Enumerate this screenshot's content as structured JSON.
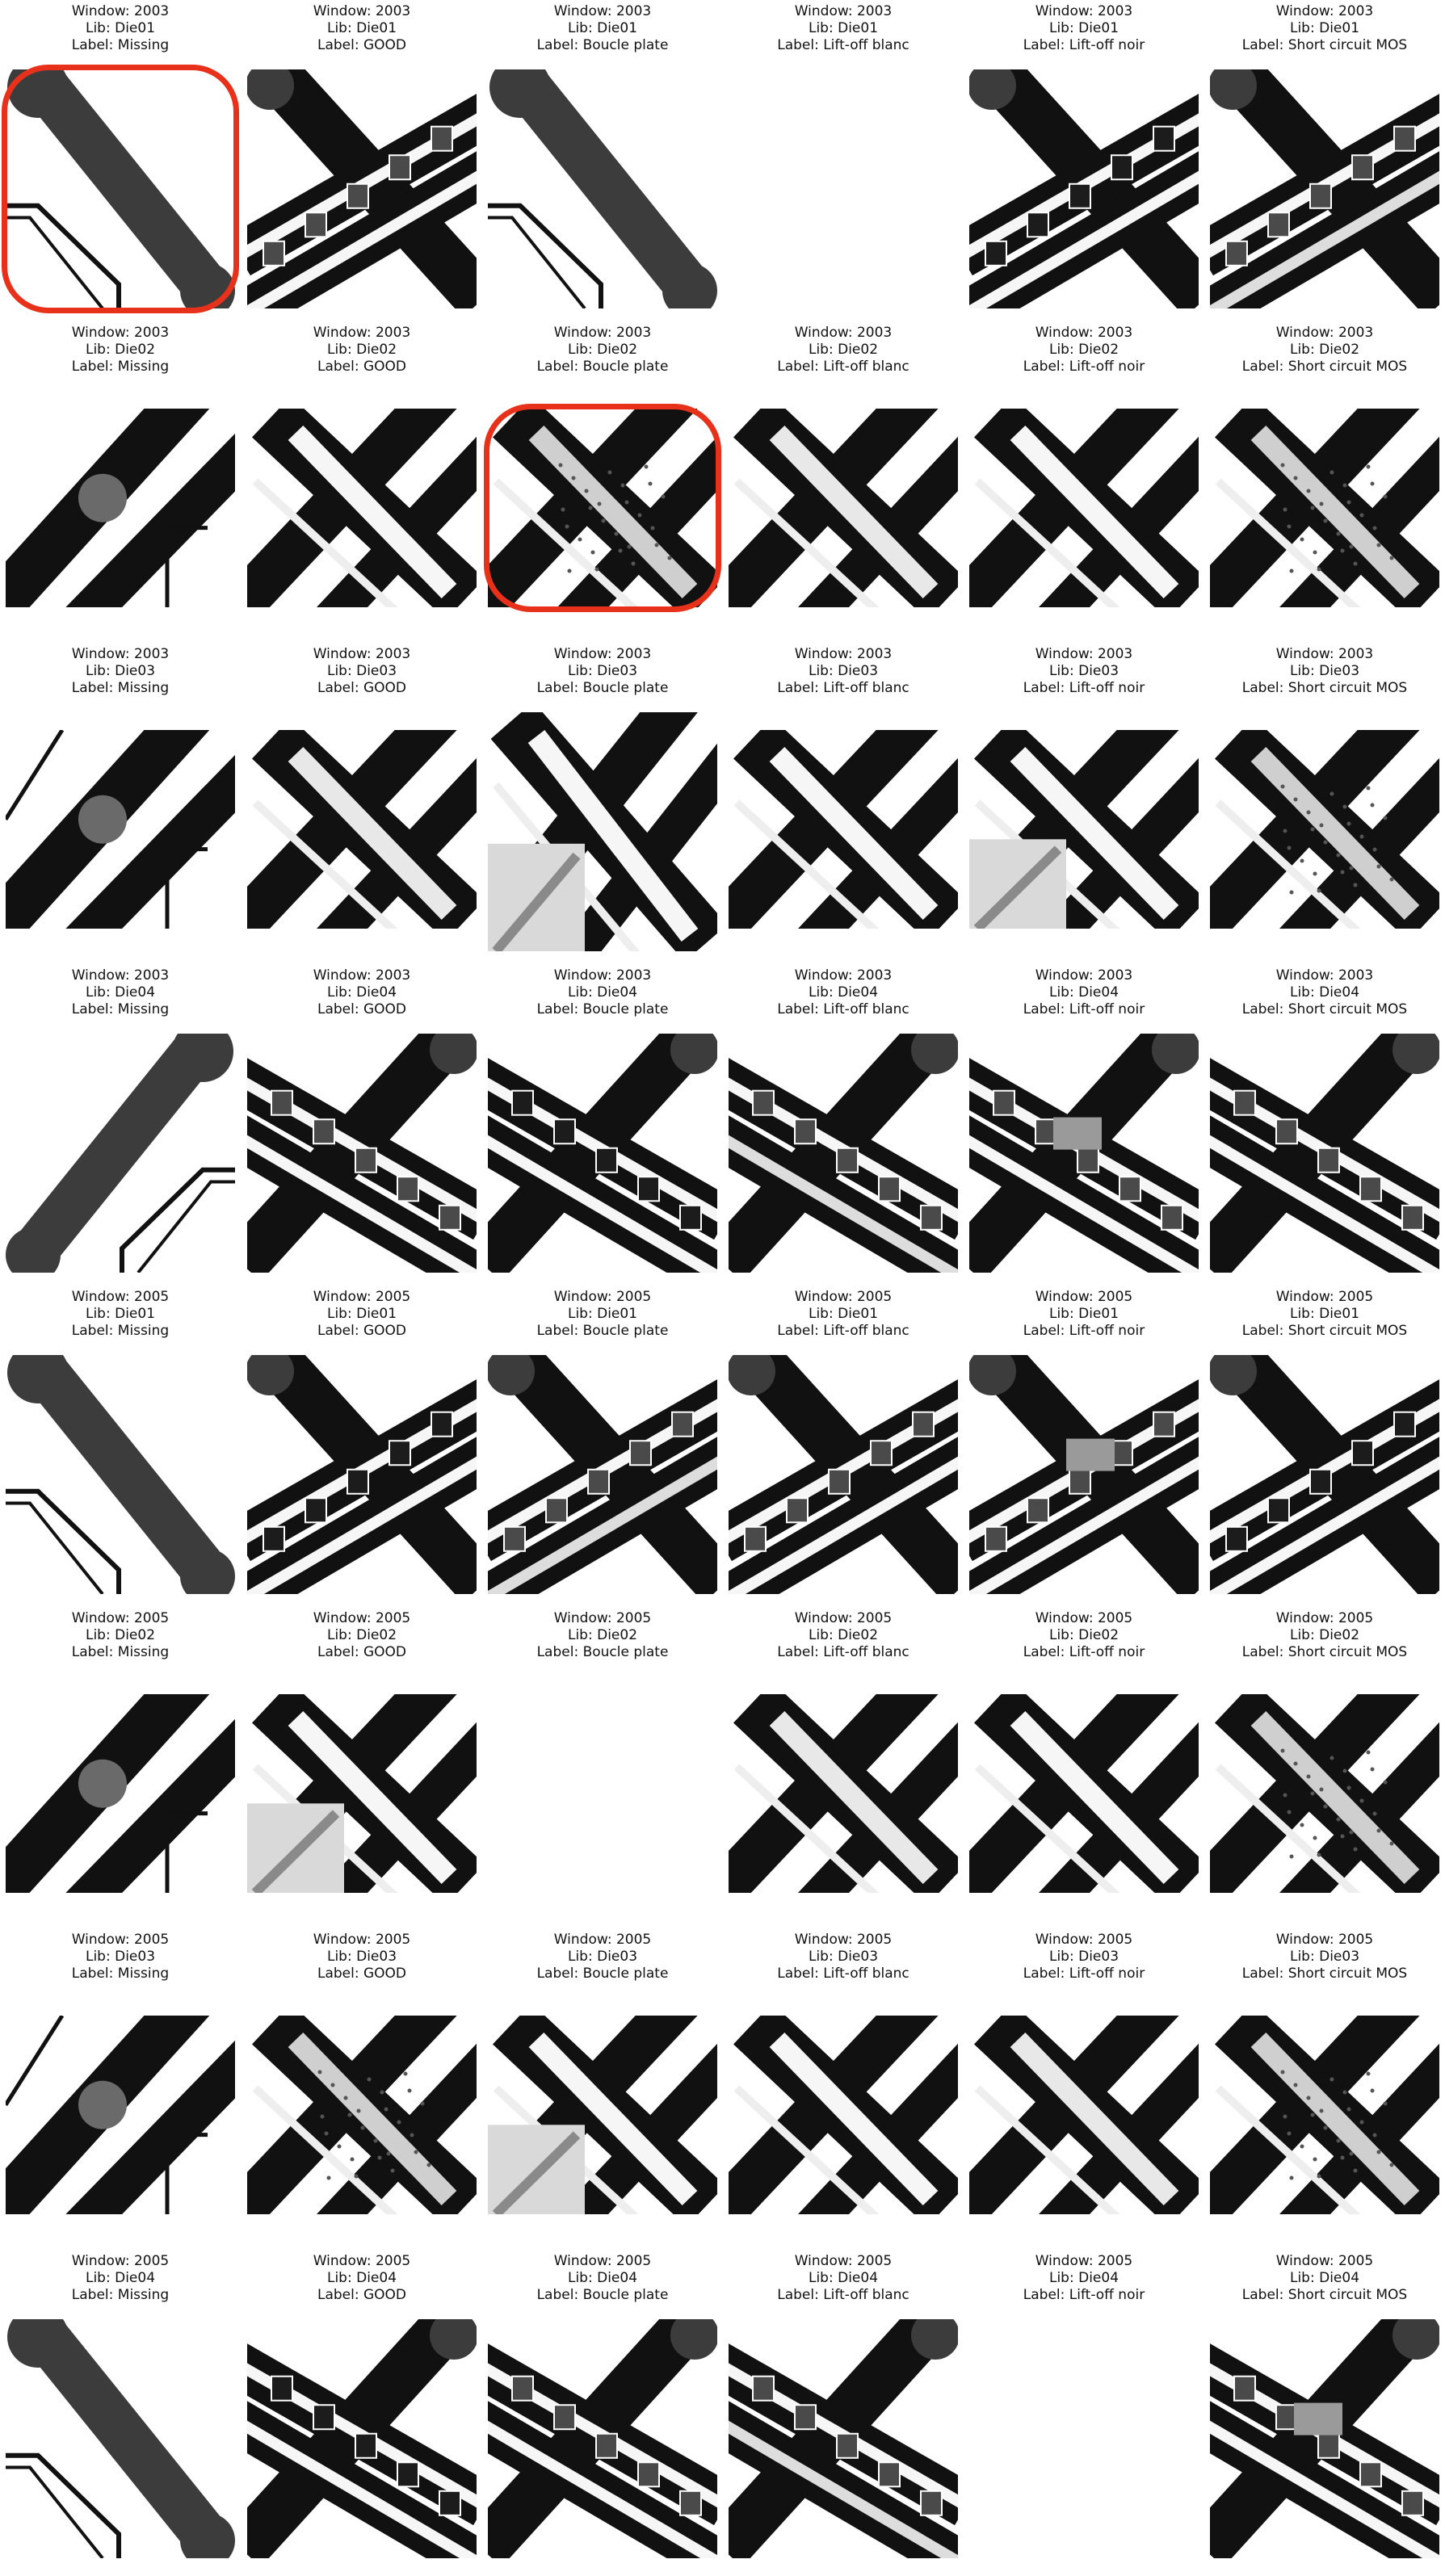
{
  "figure": {
    "columns": 6,
    "highlight_color": "#e8311a",
    "cells": [
      {
        "window": "Window: 2003",
        "lib": "Lib: Die01",
        "label": "Label: Missing",
        "image": "missing",
        "style": 1,
        "tall": true,
        "highlight": true
      },
      {
        "window": "Window: 2003",
        "lib": "Lib: Die01",
        "label": "Label: GOOD",
        "image": "crossbar",
        "style": 1,
        "tall": true
      },
      {
        "window": "Window: 2003",
        "lib": "Lib: Die01",
        "label": "Label: Boucle plate",
        "image": "missing",
        "style": 1,
        "tall": true
      },
      {
        "window": "Window: 2003",
        "lib": "Lib: Die01",
        "label": "Label: Lift-off blanc",
        "image": "none"
      },
      {
        "window": "Window: 2003",
        "lib": "Lib: Die01",
        "label": "Label: Lift-off noir",
        "image": "crossbar",
        "style": 2,
        "tall": true
      },
      {
        "window": "Window: 2003",
        "lib": "Lib: Die01",
        "label": "Label: Short circuit MOS",
        "image": "crossbar",
        "style": 3,
        "tall": true
      },
      {
        "window": "Window: 2003",
        "lib": "Lib: Die02",
        "label": "Label: Missing",
        "image": "missing-diag",
        "style": 0
      },
      {
        "window": "Window: 2003",
        "lib": "Lib: Die02",
        "label": "Label: GOOD",
        "image": "cross",
        "style": 1
      },
      {
        "window": "Window: 2003",
        "lib": "Lib: Die02",
        "label": "Label: Boucle plate",
        "image": "cross",
        "style": 2,
        "highlight": true
      },
      {
        "window": "Window: 2003",
        "lib": "Lib: Die02",
        "label": "Label: Lift-off blanc",
        "image": "cross",
        "style": 3
      },
      {
        "window": "Window: 2003",
        "lib": "Lib: Die02",
        "label": "Label: Lift-off noir",
        "image": "cross",
        "style": 1
      },
      {
        "window": "Window: 2003",
        "lib": "Lib: Die02",
        "label": "Label: Short circuit MOS",
        "image": "cross",
        "style": 2
      },
      {
        "window": "Window: 2003",
        "lib": "Lib: Die03",
        "label": "Label: Missing",
        "image": "missing-diag",
        "style": 1
      },
      {
        "window": "Window: 2003",
        "lib": "Lib: Die03",
        "label": "Label: GOOD",
        "image": "cross",
        "style": 3
      },
      {
        "window": "Window: 2003",
        "lib": "Lib: Die03",
        "label": "Label: Boucle plate",
        "image": "cross",
        "style": 4,
        "tall": true
      },
      {
        "window": "Window: 2003",
        "lib": "Lib: Die03",
        "label": "Label: Lift-off blanc",
        "image": "cross",
        "style": 1
      },
      {
        "window": "Window: 2003",
        "lib": "Lib: Die03",
        "label": "Label: Lift-off noir",
        "image": "cross",
        "style": 4
      },
      {
        "window": "Window: 2003",
        "lib": "Lib: Die03",
        "label": "Label: Short circuit MOS",
        "image": "cross",
        "style": 2
      },
      {
        "window": "Window: 2003",
        "lib": "Lib: Die04",
        "label": "Label: Missing",
        "image": "missing-flip",
        "style": 0,
        "tall": true
      },
      {
        "window": "Window: 2003",
        "lib": "Lib: Die04",
        "label": "Label: GOOD",
        "image": "crossbar-flip",
        "style": 1,
        "tall": true
      },
      {
        "window": "Window: 2003",
        "lib": "Lib: Die04",
        "label": "Label: Boucle plate",
        "image": "crossbar-flip",
        "style": 2,
        "tall": true
      },
      {
        "window": "Window: 2003",
        "lib": "Lib: Die04",
        "label": "Label: Lift-off blanc",
        "image": "crossbar-flip",
        "style": 3,
        "tall": true
      },
      {
        "window": "Window: 2003",
        "lib": "Lib: Die04",
        "label": "Label: Lift-off noir",
        "image": "crossbar-flip",
        "style": 4,
        "tall": true
      },
      {
        "window": "Window: 2003",
        "lib": "Lib: Die04",
        "label": "Label: Short circuit MOS",
        "image": "crossbar-flip",
        "style": 1,
        "tall": true
      },
      {
        "window": "Window: 2005",
        "lib": "Lib: Die01",
        "label": "Label: Missing",
        "image": "missing",
        "style": 0,
        "tall": true
      },
      {
        "window": "Window: 2005",
        "lib": "Lib: Die01",
        "label": "Label: GOOD",
        "image": "crossbar",
        "style": 2,
        "tall": true
      },
      {
        "window": "Window: 2005",
        "lib": "Lib: Die01",
        "label": "Label: Boucle plate",
        "image": "crossbar",
        "style": 3,
        "tall": true
      },
      {
        "window": "Window: 2005",
        "lib": "Lib: Die01",
        "label": "Label: Lift-off blanc",
        "image": "crossbar",
        "style": 1,
        "tall": true
      },
      {
        "window": "Window: 2005",
        "lib": "Lib: Die01",
        "label": "Label: Lift-off noir",
        "image": "crossbar",
        "style": 4,
        "tall": true
      },
      {
        "window": "Window: 2005",
        "lib": "Lib: Die01",
        "label": "Label: Short circuit MOS",
        "image": "crossbar",
        "style": 2,
        "tall": true
      },
      {
        "window": "Window: 2005",
        "lib": "Lib: Die02",
        "label": "Label: Missing",
        "image": "missing-diag",
        "style": 2
      },
      {
        "window": "Window: 2005",
        "lib": "Lib: Die02",
        "label": "Label: GOOD",
        "image": "cross",
        "style": 4
      },
      {
        "window": "Window: 2005",
        "lib": "Lib: Die02",
        "label": "Label: Boucle plate",
        "image": "none"
      },
      {
        "window": "Window: 2005",
        "lib": "Lib: Die02",
        "label": "Label: Lift-off blanc",
        "image": "cross",
        "style": 3
      },
      {
        "window": "Window: 2005",
        "lib": "Lib: Die02",
        "label": "Label: Lift-off noir",
        "image": "cross",
        "style": 1
      },
      {
        "window": "Window: 2005",
        "lib": "Lib: Die02",
        "label": "Label: Short circuit MOS",
        "image": "cross",
        "style": 2
      },
      {
        "window": "Window: 2005",
        "lib": "Lib: Die03",
        "label": "Label: Missing",
        "image": "missing-diag",
        "style": 1
      },
      {
        "window": "Window: 2005",
        "lib": "Lib: Die03",
        "label": "Label: GOOD",
        "image": "cross",
        "style": 2
      },
      {
        "window": "Window: 2005",
        "lib": "Lib: Die03",
        "label": "Label: Boucle plate",
        "image": "cross",
        "style": 4
      },
      {
        "window": "Window: 2005",
        "lib": "Lib: Die03",
        "label": "Label: Lift-off blanc",
        "image": "cross",
        "style": 1
      },
      {
        "window": "Window: 2005",
        "lib": "Lib: Die03",
        "label": "Label: Lift-off noir",
        "image": "cross",
        "style": 3
      },
      {
        "window": "Window: 2005",
        "lib": "Lib: Die03",
        "label": "Label: Short circuit MOS",
        "image": "cross",
        "style": 2
      },
      {
        "window": "Window: 2005",
        "lib": "Lib: Die04",
        "label": "Label: Missing",
        "image": "missing",
        "style": 0,
        "tall": true
      },
      {
        "window": "Window: 2005",
        "lib": "Lib: Die04",
        "label": "Label: GOOD",
        "image": "crossbar-flip",
        "style": 2,
        "tall": true
      },
      {
        "window": "Window: 2005",
        "lib": "Lib: Die04",
        "label": "Label: Boucle plate",
        "image": "crossbar-flip",
        "style": 1,
        "tall": true
      },
      {
        "window": "Window: 2005",
        "lib": "Lib: Die04",
        "label": "Label: Lift-off blanc",
        "image": "crossbar-flip",
        "style": 3,
        "tall": true
      },
      {
        "window": "Window: 2005",
        "lib": "Lib: Die04",
        "label": "Label: Lift-off noir",
        "image": "none"
      },
      {
        "window": "Window: 2005",
        "lib": "Lib: Die04",
        "label": "Label: Short circuit MOS",
        "image": "crossbar-flip",
        "style": 4,
        "tall": true
      }
    ]
  }
}
